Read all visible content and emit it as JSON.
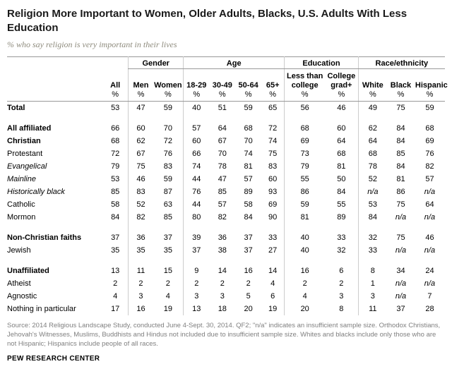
{
  "chart_data": {
    "type": "table",
    "title": "Religion More Important to Women, Older Adults, Blacks, U.S. Adults With Less Education",
    "subtitle": "% who say religion is very important in their lives",
    "unit": "%",
    "column_groups": [
      {
        "label": "",
        "cols": 1
      },
      {
        "label": "Gender",
        "cols": 2
      },
      {
        "label": "Age",
        "cols": 4
      },
      {
        "label": "Education",
        "cols": 2
      },
      {
        "label": "Race/ethnicity",
        "cols": 3
      }
    ],
    "columns": [
      "All",
      "Men",
      "Women",
      "18-29",
      "30-49",
      "50-64",
      "65+",
      "Less than college",
      "College grad+",
      "White",
      "Black",
      "Hispanic"
    ],
    "rows": [
      {
        "label": "Total",
        "style": "bold",
        "spacer": false,
        "values": [
          "53",
          "47",
          "59",
          "40",
          "51",
          "59",
          "65",
          "56",
          "46",
          "49",
          "75",
          "59"
        ]
      },
      {
        "label": "All affiliated",
        "style": "bold",
        "spacer": true,
        "values": [
          "66",
          "60",
          "70",
          "57",
          "64",
          "68",
          "72",
          "68",
          "60",
          "62",
          "84",
          "68"
        ]
      },
      {
        "label": "Christian",
        "style": "bold",
        "spacer": false,
        "values": [
          "68",
          "62",
          "72",
          "60",
          "67",
          "70",
          "74",
          "69",
          "64",
          "64",
          "84",
          "69"
        ]
      },
      {
        "label": "Protestant",
        "style": "normal",
        "spacer": false,
        "values": [
          "72",
          "67",
          "76",
          "66",
          "70",
          "74",
          "75",
          "73",
          "68",
          "68",
          "85",
          "76"
        ]
      },
      {
        "label": "Evangelical",
        "style": "italic",
        "spacer": false,
        "values": [
          "79",
          "75",
          "83",
          "74",
          "78",
          "81",
          "83",
          "79",
          "81",
          "78",
          "84",
          "82"
        ]
      },
      {
        "label": "Mainline",
        "style": "italic",
        "spacer": false,
        "values": [
          "53",
          "46",
          "59",
          "44",
          "47",
          "57",
          "60",
          "55",
          "50",
          "52",
          "81",
          "57"
        ]
      },
      {
        "label": "Historically black",
        "style": "italic",
        "spacer": false,
        "values": [
          "85",
          "83",
          "87",
          "76",
          "85",
          "89",
          "93",
          "86",
          "84",
          "n/a",
          "86",
          "n/a"
        ]
      },
      {
        "label": "Catholic",
        "style": "normal",
        "spacer": false,
        "values": [
          "58",
          "52",
          "63",
          "44",
          "57",
          "58",
          "69",
          "59",
          "55",
          "53",
          "75",
          "64"
        ]
      },
      {
        "label": "Mormon",
        "style": "normal",
        "spacer": false,
        "values": [
          "84",
          "82",
          "85",
          "80",
          "82",
          "84",
          "90",
          "81",
          "89",
          "84",
          "n/a",
          "n/a"
        ]
      },
      {
        "label": "Non-Christian faiths",
        "style": "bold",
        "spacer": true,
        "values": [
          "37",
          "36",
          "37",
          "39",
          "36",
          "37",
          "33",
          "40",
          "33",
          "32",
          "75",
          "46"
        ]
      },
      {
        "label": "Jewish",
        "style": "normal",
        "spacer": false,
        "values": [
          "35",
          "35",
          "35",
          "37",
          "38",
          "37",
          "27",
          "40",
          "32",
          "33",
          "n/a",
          "n/a"
        ]
      },
      {
        "label": "Unaffiliated",
        "style": "bold",
        "spacer": true,
        "values": [
          "13",
          "11",
          "15",
          "9",
          "14",
          "16",
          "14",
          "16",
          "6",
          "8",
          "34",
          "24"
        ]
      },
      {
        "label": "Atheist",
        "style": "normal",
        "spacer": false,
        "values": [
          "2",
          "2",
          "2",
          "2",
          "2",
          "2",
          "4",
          "2",
          "2",
          "1",
          "n/a",
          "n/a"
        ]
      },
      {
        "label": "Agnostic",
        "style": "normal",
        "spacer": false,
        "values": [
          "4",
          "3",
          "4",
          "3",
          "3",
          "5",
          "6",
          "4",
          "3",
          "3",
          "n/a",
          "7"
        ]
      },
      {
        "label": "Nothing in particular",
        "style": "normal",
        "spacer": false,
        "values": [
          "17",
          "16",
          "19",
          "13",
          "18",
          "20",
          "19",
          "20",
          "8",
          "11",
          "37",
          "28"
        ]
      }
    ]
  },
  "source_note": "Source: 2014 Religious Landscape Study, conducted June 4-Sept. 30, 2014. QF2; \"n/a\" indicates an insufficient sample size. Orthodox Christians, Jehovah's Witnesses, Muslims, Buddhists and Hindus not included due to insufficient sample size. Whites and blacks include only those who are not Hispanic; Hispanics include people of all races.",
  "branding": "PEW RESEARCH CENTER"
}
